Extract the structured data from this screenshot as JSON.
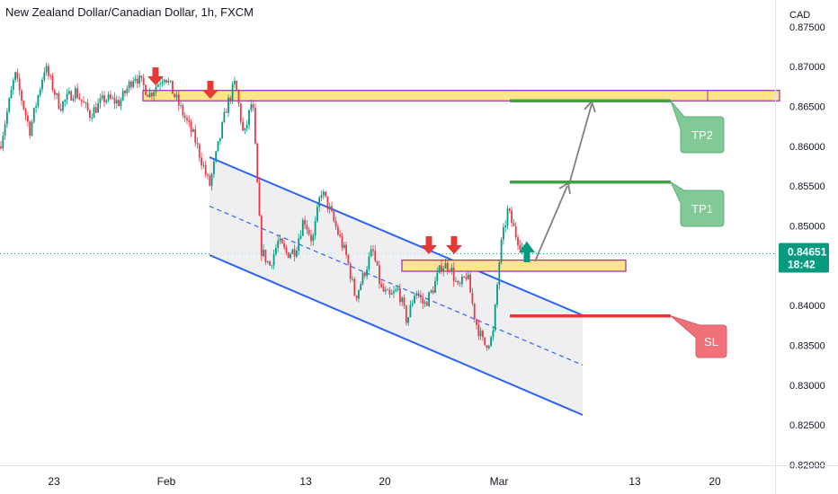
{
  "chart_data": {
    "type": "candlestick",
    "title": "New Zealand Dollar/Canadian Dollar, 1h, FXCM",
    "currency": "CAD",
    "y_ticks": [
      "0.87500",
      "0.87000",
      "0.86500",
      "0.86000",
      "0.85500",
      "0.85000",
      "0.84500",
      "0.84000",
      "0.83500",
      "0.83000",
      "0.82500",
      "0.82000"
    ],
    "ylim": [
      0.8198,
      0.8762
    ],
    "x_ticks": [
      "23",
      "Feb",
      "13",
      "20",
      "Mar",
      "13",
      "20"
    ],
    "last_price": "0.84651",
    "countdown": "18:42",
    "colors": {
      "up": "#089981",
      "down": "#f23645",
      "channel": "#2962ff",
      "zone_fill": "#fde68a",
      "zone_border": "#9c27b0",
      "tp": "#43a047",
      "sl": "#e53935",
      "label_tp_bg": "#81c995",
      "label_sl_bg": "#f07178"
    },
    "price_path": [
      [
        0.86,
        0.869,
        0.862,
        0.87,
        0.865,
        0.867,
        0.864,
        0.866,
        0.8655,
        0.869,
        0.8665,
        0.869,
        0.865,
        0.861,
        0.855
      ],
      [
        0.855,
        0.86,
        0.865,
        0.868,
        0.861,
        0.866,
        0.847,
        0.845,
        0.848,
        0.8465,
        0.847,
        0.851,
        0.848,
        0.8545,
        0.852,
        0.849,
        0.846,
        0.841,
        0.844,
        0.847,
        0.842,
        0.841,
        0.842,
        0.838,
        0.842,
        0.84,
        0.842,
        0.845,
        0.845,
        0.842,
        0.844,
        0.838,
        0.835,
        0.836
      ],
      [
        0.836,
        0.847,
        0.852,
        0.849,
        0.847,
        0.8465
      ]
    ],
    "annotations": {
      "resistance_zone": {
        "from": 0.8657,
        "to": 0.867
      },
      "support_zone": {
        "from": 0.8443,
        "to": 0.8457
      },
      "tp_levels": [
        {
          "label": "TP1",
          "price": 0.8555
        },
        {
          "label": "TP2",
          "price": 0.8657
        }
      ],
      "sl_level": {
        "label": "SL",
        "price": 0.8387
      }
    }
  }
}
